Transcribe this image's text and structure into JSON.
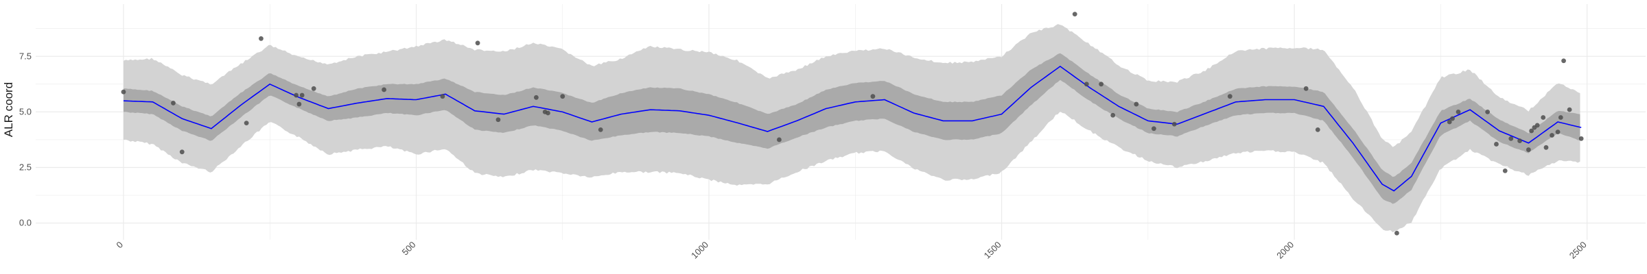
{
  "chart_data": {
    "type": "scatter",
    "title": "",
    "xlabel": "",
    "ylabel": "ALR coord",
    "xlim": [
      -150,
      2600
    ],
    "ylim": [
      -0.75,
      9.85
    ],
    "grid": true,
    "legend": "none",
    "x_ticks": [
      {
        "value": 0,
        "label": "0"
      },
      {
        "value": 500,
        "label": "500"
      },
      {
        "value": 1000,
        "label": "1000"
      },
      {
        "value": 1500,
        "label": "1500"
      },
      {
        "value": 2000,
        "label": "2000"
      },
      {
        "value": 2500,
        "label": "2500"
      }
    ],
    "y_ticks": [
      {
        "value": 0.0,
        "label": "0.0"
      },
      {
        "value": 2.5,
        "label": "2.5"
      },
      {
        "value": 5.0,
        "label": "5.0"
      },
      {
        "value": 7.5,
        "label": "7.5"
      }
    ],
    "colors": {
      "points": "#4d4d4d",
      "mean_line": "#0000ff",
      "inner_band": "#aaaaaa",
      "outer_band": "#d3d3d3",
      "grid": "#ebebeb"
    },
    "mean_line": {
      "x": [
        0,
        50,
        100,
        150,
        200,
        250,
        300,
        350,
        400,
        450,
        500,
        550,
        600,
        650,
        700,
        750,
        800,
        850,
        900,
        950,
        1000,
        1050,
        1100,
        1150,
        1200,
        1250,
        1300,
        1350,
        1400,
        1450,
        1500,
        1550,
        1600,
        1650,
        1700,
        1750,
        1800,
        1850,
        1900,
        1950,
        2000,
        2050,
        2100,
        2150,
        2170,
        2200,
        2250,
        2300,
        2350,
        2400,
        2450,
        2490
      ],
      "y": [
        5.5,
        5.45,
        4.7,
        4.25,
        5.3,
        6.25,
        5.65,
        5.15,
        5.4,
        5.6,
        5.55,
        5.8,
        5.05,
        4.9,
        5.25,
        5.0,
        4.55,
        4.9,
        5.1,
        5.05,
        4.85,
        4.5,
        4.12,
        4.6,
        5.15,
        5.45,
        5.55,
        4.95,
        4.6,
        4.6,
        4.9,
        6.1,
        7.05,
        6.1,
        5.25,
        4.6,
        4.45,
        4.95,
        5.45,
        5.55,
        5.55,
        5.25,
        3.6,
        1.75,
        1.45,
        2.1,
        4.5,
        5.1,
        4.15,
        3.6,
        4.55,
        4.3
      ]
    },
    "inner_band": {
      "lower": [
        5.0,
        4.9,
        4.15,
        3.7,
        4.75,
        5.75,
        5.15,
        4.6,
        4.75,
        4.95,
        4.85,
        5.1,
        4.2,
        4.05,
        4.4,
        4.15,
        3.7,
        3.95,
        4.1,
        4.05,
        3.9,
        3.6,
        3.35,
        3.85,
        4.3,
        4.6,
        4.7,
        4.1,
        3.75,
        3.75,
        4.05,
        5.3,
        6.45,
        5.5,
        4.7,
        4.05,
        3.9,
        4.4,
        4.85,
        4.95,
        4.95,
        4.6,
        2.95,
        1.1,
        0.85,
        1.5,
        3.95,
        4.6,
        3.65,
        3.15,
        4.05,
        3.7
      ],
      "upper": [
        6.05,
        5.95,
        5.25,
        4.8,
        5.85,
        6.75,
        6.15,
        5.7,
        6.05,
        6.25,
        6.25,
        6.5,
        5.9,
        5.75,
        6.1,
        5.85,
        5.4,
        5.85,
        6.1,
        6.05,
        5.8,
        5.4,
        4.9,
        5.35,
        6.0,
        6.3,
        6.4,
        5.8,
        5.45,
        5.45,
        5.75,
        6.9,
        7.65,
        6.7,
        5.8,
        5.15,
        5.0,
        5.5,
        6.05,
        6.15,
        6.15,
        5.9,
        4.25,
        2.4,
        2.05,
        2.7,
        5.05,
        5.6,
        4.65,
        4.05,
        5.05,
        4.9
      ]
    },
    "outer_band": {
      "lower": [
        3.75,
        3.55,
        2.7,
        2.3,
        3.45,
        4.55,
        3.85,
        3.1,
        3.3,
        3.45,
        3.1,
        3.35,
        2.25,
        2.05,
        2.4,
        2.25,
        2.05,
        2.3,
        2.3,
        2.25,
        1.95,
        1.7,
        1.75,
        2.3,
        2.8,
        3.15,
        3.25,
        2.45,
        1.95,
        1.95,
        2.3,
        3.65,
        5.05,
        4.15,
        3.4,
        2.8,
        2.5,
        2.8,
        3.15,
        3.25,
        3.2,
        2.7,
        1.1,
        -0.25,
        -0.4,
        0.05,
        2.45,
        3.3,
        2.65,
        2.15,
        2.8,
        2.75
      ],
      "upper": [
        7.3,
        7.4,
        6.65,
        6.25,
        7.15,
        8.0,
        7.45,
        7.15,
        7.5,
        7.7,
        7.95,
        8.25,
        7.8,
        7.7,
        8.1,
        7.8,
        7.05,
        7.4,
        7.95,
        7.8,
        7.7,
        7.3,
        6.5,
        6.9,
        7.5,
        7.75,
        7.85,
        7.45,
        7.2,
        7.25,
        7.5,
        8.55,
        8.95,
        8.05,
        7.1,
        6.4,
        6.35,
        6.9,
        7.75,
        7.85,
        7.9,
        7.8,
        6.1,
        3.8,
        3.4,
        4.1,
        6.55,
        6.9,
        5.65,
        5.05,
        6.3,
        5.85
      ]
    },
    "points": {
      "x": [
        0,
        85,
        100,
        210,
        235,
        295,
        300,
        305,
        325,
        445,
        545,
        605,
        640,
        705,
        720,
        725,
        750,
        815,
        1120,
        1280,
        1625,
        1645,
        1670,
        1690,
        1730,
        1760,
        1795,
        1890,
        2020,
        2040,
        2175,
        2265,
        2270,
        2280,
        2330,
        2345,
        2360,
        2370,
        2385,
        2400,
        2405,
        2410,
        2415,
        2425,
        2430,
        2440,
        2450,
        2455,
        2460,
        2470,
        2490
      ],
      "y": [
        5.9,
        5.4,
        3.2,
        4.5,
        8.3,
        5.75,
        5.35,
        5.75,
        6.05,
        6.0,
        5.7,
        8.1,
        4.65,
        5.65,
        5.0,
        4.95,
        5.7,
        4.2,
        3.75,
        5.7,
        9.4,
        6.25,
        6.25,
        4.85,
        5.35,
        4.25,
        4.45,
        5.7,
        6.05,
        4.2,
        -0.45,
        4.55,
        4.7,
        5.0,
        5.0,
        3.55,
        2.35,
        3.8,
        3.7,
        3.3,
        4.15,
        4.3,
        4.4,
        4.75,
        3.4,
        3.95,
        4.1,
        4.75,
        7.3,
        5.1,
        3.8
      ]
    }
  }
}
